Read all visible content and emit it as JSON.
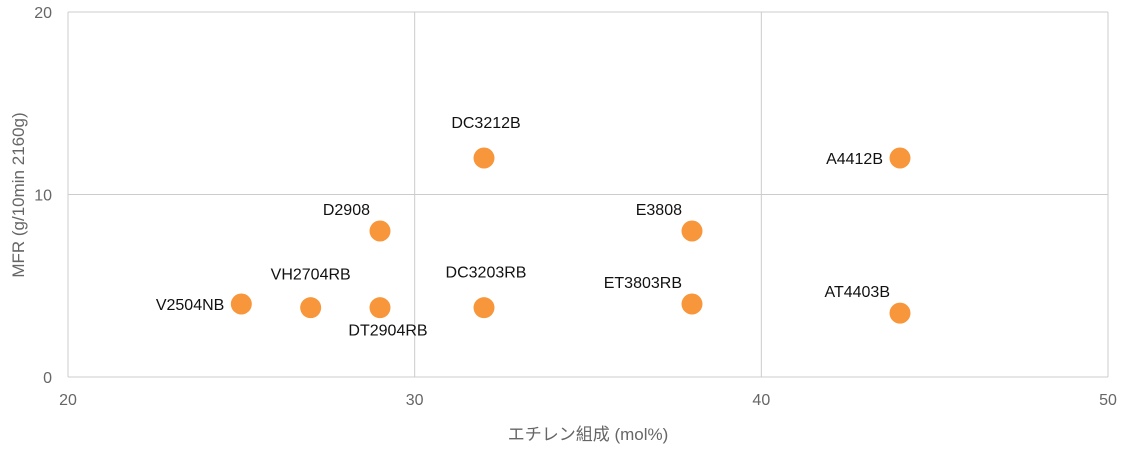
{
  "chart_data": {
    "type": "scatter",
    "title": "",
    "xlabel": "エチレン組成 (mol%)",
    "ylabel": "MFR (g/10min 2160g)",
    "xlim": [
      20,
      50
    ],
    "ylim": [
      0,
      20
    ],
    "x_ticks": [
      20,
      30,
      40,
      50
    ],
    "y_ticks": [
      0,
      10,
      20
    ],
    "grid": true,
    "marker_color": "#F7963A",
    "points": [
      {
        "label": "V2504NB",
        "x": 25,
        "y": 4.0,
        "label_pos": "left"
      },
      {
        "label": "VH2704RB",
        "x": 27,
        "y": 3.8,
        "label_pos": "above-right"
      },
      {
        "label": "D2908",
        "x": 29,
        "y": 8.0,
        "label_pos": "above-left"
      },
      {
        "label": "DT2904RB",
        "x": 29,
        "y": 3.8,
        "label_pos": "below"
      },
      {
        "label": "DC3212B",
        "x": 32,
        "y": 12.0,
        "label_pos": "above"
      },
      {
        "label": "DC3203RB",
        "x": 32,
        "y": 3.8,
        "label_pos": "above"
      },
      {
        "label": "E3808",
        "x": 38,
        "y": 8.0,
        "label_pos": "above-left"
      },
      {
        "label": "ET3803RB",
        "x": 38,
        "y": 4.0,
        "label_pos": "above-left"
      },
      {
        "label": "A4412B",
        "x": 44,
        "y": 12.0,
        "label_pos": "left"
      },
      {
        "label": "AT4403B",
        "x": 44,
        "y": 3.5,
        "label_pos": "above-left"
      }
    ]
  }
}
